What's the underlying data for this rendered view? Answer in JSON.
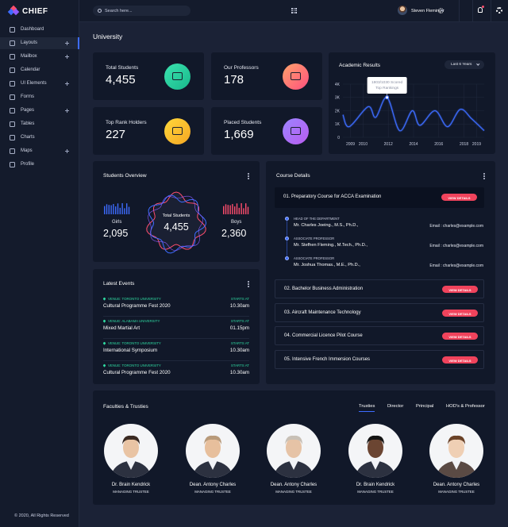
{
  "sidebar": {
    "brand": "CHIEF",
    "menu": [
      {
        "label": "Dashboard"
      },
      {
        "label": "Layouts",
        "expandable": true,
        "active": true
      },
      {
        "label": "Mailbox",
        "expandable": true
      },
      {
        "label": "Calendar"
      },
      {
        "label": "UI Elements",
        "expandable": true
      },
      {
        "label": "Forms"
      },
      {
        "label": "Pages",
        "expandable": true
      },
      {
        "label": "Tables"
      },
      {
        "label": "Charts"
      },
      {
        "label": "Maps",
        "expandable": true
      },
      {
        "label": "Profile"
      }
    ],
    "footer": "© 2020, All Rights Reserved"
  },
  "topbar": {
    "search_placeholder": "Search here...",
    "user": "Steven Fleming"
  },
  "page_title": "University",
  "stats": [
    {
      "label": "Total Students",
      "value": "4,455"
    },
    {
      "label": "Our Professors",
      "value": "178"
    },
    {
      "label": "Top Rank Holders",
      "value": "227"
    },
    {
      "label": "Placed Students",
      "value": "1,669"
    }
  ],
  "academic_results": {
    "type": "line",
    "title": "Academic Results",
    "filter": "Last 6 Years",
    "x": [
      2008.4,
      2008.9,
      2010.4,
      2011.0,
      2011.9,
      2012.9,
      2013.9,
      2014.5,
      2015.7,
      2016.7,
      2017.7,
      2018.6,
      2019.6
    ],
    "values": [
      1700,
      800,
      2300,
      1500,
      3000,
      500,
      2000,
      900,
      2000,
      800,
      2100,
      1400,
      500
    ],
    "color": "#3d6cff",
    "grid": true,
    "xlim": [
      2008.4,
      2019.6
    ],
    "ylim": [
      0,
      4000
    ],
    "xticks": [
      2009,
      2010,
      2012,
      2014,
      2016,
      2018,
      2019
    ],
    "yticks": [
      0,
      {
        "value": 1000,
        "label": "1K"
      },
      {
        "value": 2000,
        "label": "2K"
      },
      {
        "value": 3000,
        "label": "3K"
      },
      {
        "value": 4000,
        "label": "4K"
      }
    ],
    "tooltip": [
      "1803/1030 Scored",
      "Top Rankings"
    ]
  },
  "students_overview": {
    "title": "Students Overview",
    "girls": {
      "label": "Girls",
      "value": "2,095"
    },
    "total": {
      "label": "Total Students",
      "value": "4,455"
    },
    "boys": {
      "label": "Boys",
      "value": "2,360"
    }
  },
  "latest_events": {
    "title": "Latest Events",
    "items": [
      {
        "venue": "VENUE: TORONTO UNIVERSITY",
        "name": "Cultural Programme Fest 2020",
        "starts": "STARTS AT",
        "time": "10.30am"
      },
      {
        "venue": "VENUE: ALABAMA UNIVERSITY",
        "name": "Mixed Martial Art",
        "starts": "STARTS AT",
        "time": "01.15pm"
      },
      {
        "venue": "VENUE: TORONTO UNIVERSITY",
        "name": "International Symposium",
        "starts": "STARTS AT",
        "time": "10.30am"
      },
      {
        "venue": "VENUE: TORONTO UNIVERSITY",
        "name": "Cultural Programme Fest 2020",
        "starts": "STARTS AT",
        "time": "10.30am"
      }
    ]
  },
  "course_details": {
    "title": "Course Details",
    "courses": [
      {
        "name": "01. Preparatory Course for ACCA Examination",
        "button": "VIEW DETAILS",
        "staff": [
          {
            "role": "HEAD OF THE DEPARTMENT",
            "name": "Mr. Charles Joeing., M.S., Ph.D.,",
            "email": "Email : charles@example.com"
          },
          {
            "role": "ASSOCIATE PROFESSOR",
            "name": "Mr. Stefhen Fleming., M.Tech., Ph.D.,",
            "email": "Email : charles@example.com"
          },
          {
            "role": "ASSOCIATE PROFESSOR",
            "name": "Mr. Joshua Thomas., M.E., Ph.D.,",
            "email": "Email : charles@example.com"
          }
        ]
      },
      {
        "name": "02. Bachelor Business Administration",
        "button": "VIEW DETAILS"
      },
      {
        "name": "03. Aircraft Maintenance Technology",
        "button": "VIEW DETAILS"
      },
      {
        "name": "04. Commercial Licence Pilot Course",
        "button": "VIEW DETAILS"
      },
      {
        "name": "05. Intensive French Immersion Courses",
        "button": "VIEW DETAILS"
      }
    ]
  },
  "faculties": {
    "title": "Faculties & Trusties",
    "tabs": [
      "Trusties",
      "Director",
      "Principal",
      "HOD's & Professor"
    ],
    "people": [
      {
        "name": "Dr. Brain Kendrick",
        "role": "MANAGING TRUSTEE"
      },
      {
        "name": "Dean. Antony Charles",
        "role": "MANAGING TRUSTEE"
      },
      {
        "name": "Dean. Antony Charles",
        "role": "MANAGING TRUSTEE"
      },
      {
        "name": "Dr. Brain Kendrick",
        "role": "MANAGING TRUSTEE"
      },
      {
        "name": "Dean. Antony Charles",
        "role": "MANAGING TRUSTEE"
      }
    ]
  }
}
